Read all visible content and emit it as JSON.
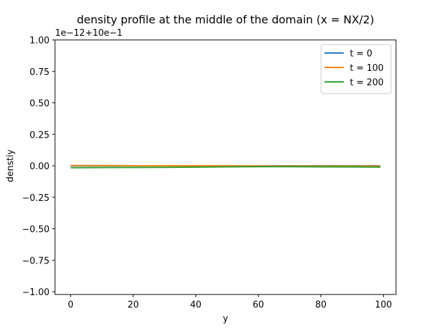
{
  "chart_data": {
    "type": "line",
    "title": "density profile at the middle of the domain (x = NX/2)",
    "xlabel": "y",
    "ylabel": "denstiy",
    "offset_text": "1e−12+10e−1",
    "xlim": [
      -5,
      104
    ],
    "ylim": [
      -1.0,
      1.0
    ],
    "xticks": [
      0,
      20,
      40,
      60,
      80,
      100
    ],
    "xtick_labels": [
      "0",
      "20",
      "40",
      "60",
      "80",
      "100"
    ],
    "yticks": [
      1.0,
      0.75,
      0.5,
      0.25,
      0.0,
      -0.25,
      -0.5,
      -0.75,
      -1.0
    ],
    "ytick_labels": [
      "1.00",
      "0.75",
      "0.50",
      "0.25",
      "0.00",
      "−0.25",
      "−0.50",
      "−0.75",
      "−1.00"
    ],
    "grid": false,
    "legend_position": "top-right",
    "x": [
      0,
      10,
      20,
      30,
      40,
      50,
      60,
      70,
      80,
      90,
      99
    ],
    "series": [
      {
        "name": "t = 0",
        "color": "#1f77b4",
        "values": [
          0.0,
          0.0,
          0.0,
          0.0,
          0.0,
          0.0,
          0.0,
          0.0,
          0.0,
          0.0,
          0.0
        ]
      },
      {
        "name": "t = 100",
        "color": "#ff7f0e",
        "values": [
          0.002,
          0.002,
          0.001,
          0.0,
          0.0,
          -0.001,
          -0.001,
          -0.002,
          -0.002,
          -0.003,
          -0.003
        ]
      },
      {
        "name": "t = 200",
        "color": "#2ca02c",
        "values": [
          -0.015,
          -0.014,
          -0.013,
          -0.012,
          -0.01,
          -0.008,
          -0.007,
          -0.007,
          -0.008,
          -0.009,
          -0.01
        ]
      }
    ]
  }
}
